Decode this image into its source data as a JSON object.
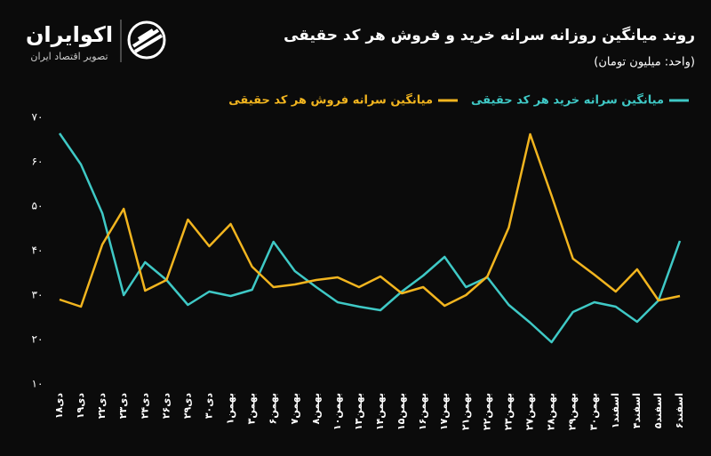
{
  "logo": {
    "name": "اکوایران",
    "tagline": "تصویر اقتصاد ایران"
  },
  "chart_data": {
    "type": "line",
    "title": "روند میانگین روزانه سرانه خرید و فروش هر کد حقیقی",
    "subtitle": "(واحد: میلیون تومان)",
    "categories": [
      "۱۸دی",
      "۱۹دی",
      "۲۲دی",
      "۲۳دی",
      "۲۴دی",
      "۲۶دی",
      "۲۹دی",
      "۳۰دی",
      "۱بهمن",
      "۳بهمن",
      "۶بهمن",
      "۷بهمن",
      "۸بهمن",
      "۱۰بهمن",
      "۱۳بهمن",
      "۱۴بهمن",
      "۱۵بهمن",
      "۱۶بهمن",
      "۱۷بهمن",
      "۲۱بهمن",
      "۲۲بهمن",
      "۲۳بهمن",
      "۲۷بهمن",
      "۲۸بهمن",
      "۲۹بهمن",
      "۳۰بهمن",
      "۱اسفند",
      "۴اسفند",
      "۵اسفند",
      "۶اسفند"
    ],
    "series": [
      {
        "name": "میانگین سرانه خرید هر کد حقیقی",
        "color": "#3fc9c6",
        "values": [
          66.4,
          59.4,
          48.4,
          30,
          37.4,
          33.4,
          27.8,
          30.8,
          29.8,
          31.2,
          42,
          35.4,
          31.8,
          28.4,
          27.4,
          26.6,
          30.8,
          34.4,
          38.6,
          31.8,
          34,
          27.8,
          23.8,
          19.4,
          26.2,
          28.4,
          27.4,
          24,
          28.8,
          42.2
        ]
      },
      {
        "name": "میانگین سرانه فروش هر کد حقیقی",
        "color": "#f2b51f",
        "values": [
          29,
          27.4,
          41.4,
          49.4,
          31,
          33.4,
          47,
          41,
          46,
          36.4,
          31.8,
          32.4,
          33.4,
          34,
          31.8,
          34.2,
          30.4,
          31.8,
          27.6,
          30,
          34.2,
          45.2,
          66.2,
          52.4,
          38.2,
          34.6,
          30.8,
          35.8,
          28.8,
          29.8
        ]
      }
    ],
    "ylim": [
      10,
      70
    ],
    "yticks": [
      {
        "value": 10,
        "label": "۱۰"
      },
      {
        "value": 20,
        "label": "۲۰"
      },
      {
        "value": 30,
        "label": "۳۰"
      },
      {
        "value": 40,
        "label": "۴۰"
      },
      {
        "value": 50,
        "label": "۵۰"
      },
      {
        "value": 60,
        "label": "۶۰"
      },
      {
        "value": 70,
        "label": "۷۰"
      }
    ]
  }
}
